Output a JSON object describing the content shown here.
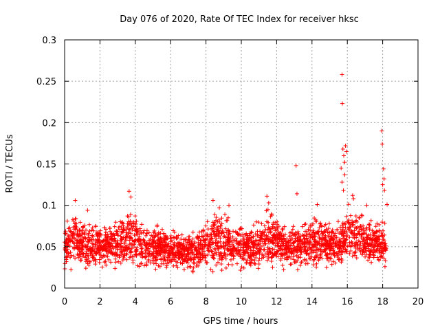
{
  "chart_data": {
    "type": "scatter",
    "title": "Day 076 of 2020, Rate Of TEC Index for receiver hksc",
    "xlabel": "GPS time / hours",
    "ylabel": "ROTI / TECUs",
    "xlim": [
      0,
      20
    ],
    "ylim": [
      0,
      0.3
    ],
    "xticks": [
      "0",
      "2",
      "4",
      "6",
      "8",
      "10",
      "12",
      "14",
      "16",
      "18",
      "20"
    ],
    "yticks": [
      "0",
      "0.05",
      "0.1",
      "0.15",
      "0.2",
      "0.25",
      "0.3"
    ],
    "grid": true,
    "marker": "plus",
    "marker_color": "#ff0000",
    "data_range_hours": [
      0,
      18.2
    ],
    "band_profile": [
      {
        "x": 0.0,
        "low": 0.02,
        "high": 0.08
      },
      {
        "x": 0.5,
        "low": 0.018,
        "high": 0.1
      },
      {
        "x": 1.0,
        "low": 0.018,
        "high": 0.09
      },
      {
        "x": 2.0,
        "low": 0.016,
        "high": 0.082
      },
      {
        "x": 3.0,
        "low": 0.018,
        "high": 0.086
      },
      {
        "x": 3.7,
        "low": 0.015,
        "high": 0.112
      },
      {
        "x": 4.5,
        "low": 0.018,
        "high": 0.08
      },
      {
        "x": 5.5,
        "low": 0.018,
        "high": 0.078
      },
      {
        "x": 6.5,
        "low": 0.015,
        "high": 0.075
      },
      {
        "x": 7.5,
        "low": 0.012,
        "high": 0.078
      },
      {
        "x": 8.5,
        "low": 0.014,
        "high": 0.104
      },
      {
        "x": 9.5,
        "low": 0.015,
        "high": 0.09
      },
      {
        "x": 10.5,
        "low": 0.018,
        "high": 0.076
      },
      {
        "x": 11.5,
        "low": 0.015,
        "high": 0.105
      },
      {
        "x": 12.5,
        "low": 0.02,
        "high": 0.08
      },
      {
        "x": 13.5,
        "low": 0.018,
        "high": 0.086
      },
      {
        "x": 14.5,
        "low": 0.018,
        "high": 0.098
      },
      {
        "x": 15.5,
        "low": 0.02,
        "high": 0.082
      },
      {
        "x": 16.0,
        "low": 0.022,
        "high": 0.11
      },
      {
        "x": 17.0,
        "low": 0.02,
        "high": 0.09
      },
      {
        "x": 18.2,
        "low": 0.02,
        "high": 0.085
      }
    ],
    "outliers": [
      {
        "x": 0.15,
        "y": 0.081
      },
      {
        "x": 0.6,
        "y": 0.106
      },
      {
        "x": 1.3,
        "y": 0.094
      },
      {
        "x": 3.65,
        "y": 0.117
      },
      {
        "x": 3.75,
        "y": 0.11
      },
      {
        "x": 8.4,
        "y": 0.106
      },
      {
        "x": 9.3,
        "y": 0.1
      },
      {
        "x": 11.45,
        "y": 0.111
      },
      {
        "x": 11.55,
        "y": 0.103
      },
      {
        "x": 13.1,
        "y": 0.148
      },
      {
        "x": 13.15,
        "y": 0.114
      },
      {
        "x": 14.3,
        "y": 0.101
      },
      {
        "x": 15.7,
        "y": 0.258
      },
      {
        "x": 15.72,
        "y": 0.223
      },
      {
        "x": 15.75,
        "y": 0.168
      },
      {
        "x": 15.8,
        "y": 0.16
      },
      {
        "x": 15.85,
        "y": 0.152
      },
      {
        "x": 15.9,
        "y": 0.172
      },
      {
        "x": 15.95,
        "y": 0.165
      },
      {
        "x": 15.65,
        "y": 0.145
      },
      {
        "x": 15.7,
        "y": 0.128
      },
      {
        "x": 15.78,
        "y": 0.118
      },
      {
        "x": 15.85,
        "y": 0.137
      },
      {
        "x": 16.3,
        "y": 0.112
      },
      {
        "x": 16.35,
        "y": 0.108
      },
      {
        "x": 17.1,
        "y": 0.1
      },
      {
        "x": 17.95,
        "y": 0.19
      },
      {
        "x": 17.98,
        "y": 0.174
      },
      {
        "x": 18.05,
        "y": 0.144
      },
      {
        "x": 18.08,
        "y": 0.132
      },
      {
        "x": 18.0,
        "y": 0.125
      },
      {
        "x": 18.1,
        "y": 0.118
      },
      {
        "x": 18.25,
        "y": 0.101
      }
    ]
  }
}
